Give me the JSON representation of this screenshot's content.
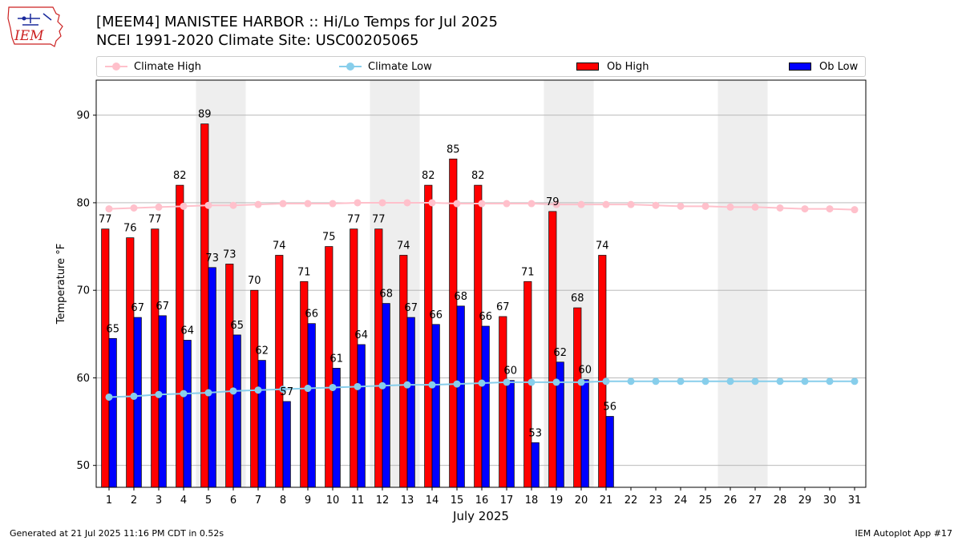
{
  "logo_text": "IEM",
  "title_line1": "[MEEM4] MANISTEE HARBOR :: Hi/Lo Temps for Jul 2025",
  "title_line2": "NCEI 1991-2020 Climate Site: USC00205065",
  "footer_left": "Generated at 21 Jul 2025 11:16 PM CDT in 0.52s",
  "footer_right": "IEM Autoplot App #17",
  "legend": {
    "climate_high": "Climate High",
    "climate_low": "Climate Low",
    "ob_high": "Ob High",
    "ob_low": "Ob Low"
  },
  "colors": {
    "ob_high": "#ff0000",
    "ob_low": "#0000ff",
    "climate_high": "#ffc0cb",
    "climate_low": "#87ceeb",
    "weekend_shade": "#eeeeee",
    "grid": "#b0b0b0"
  },
  "chart_data": {
    "type": "bar",
    "xlabel": "July 2025",
    "ylabel": "Temperature °F",
    "ylim": [
      47.5,
      94
    ],
    "yticks": [
      50,
      60,
      70,
      80,
      90
    ],
    "grid": "horizontal",
    "legend_position": "top",
    "days": [
      1,
      2,
      3,
      4,
      5,
      6,
      7,
      8,
      9,
      10,
      11,
      12,
      13,
      14,
      15,
      16,
      17,
      18,
      19,
      20,
      21,
      22,
      23,
      24,
      25,
      26,
      27,
      28,
      29,
      30,
      31
    ],
    "shaded_days": [
      5,
      6,
      12,
      13,
      19,
      20,
      26,
      27
    ],
    "series": [
      {
        "name": "Ob High",
        "kind": "bar",
        "values": [
          77,
          76,
          77,
          82,
          89,
          73,
          70,
          74,
          71,
          75,
          77,
          77,
          74,
          82,
          85,
          82,
          67,
          71,
          79,
          68,
          74
        ],
        "labels": [
          "77",
          "76",
          "77",
          "82",
          "89",
          "73",
          "70",
          "74",
          "71",
          "75",
          "77",
          "77",
          "74",
          "82",
          "85",
          "82",
          "67",
          "71",
          "79",
          "68",
          "74"
        ]
      },
      {
        "name": "Ob Low",
        "kind": "bar",
        "values": [
          64.5,
          66.9,
          67.1,
          64.3,
          72.6,
          64.9,
          62,
          57.3,
          66.2,
          61.1,
          63.8,
          68.5,
          66.9,
          66.1,
          68.2,
          65.9,
          59.7,
          52.6,
          61.8,
          59.8,
          55.6
        ],
        "labels": [
          "65",
          "67",
          "67",
          "64",
          "73",
          "65",
          "62",
          "57",
          "66",
          "61",
          "64",
          "68",
          "67",
          "66",
          "68",
          "66",
          "60",
          "53",
          "62",
          "60",
          "56"
        ]
      },
      {
        "name": "Climate High",
        "kind": "line",
        "values": [
          79.3,
          79.4,
          79.5,
          79.6,
          79.7,
          79.7,
          79.8,
          79.9,
          79.9,
          79.9,
          80.0,
          80.0,
          80.0,
          80.0,
          79.9,
          79.9,
          79.9,
          79.9,
          79.8,
          79.8,
          79.8,
          79.8,
          79.7,
          79.6,
          79.6,
          79.5,
          79.5,
          79.4,
          79.3,
          79.3,
          79.2
        ]
      },
      {
        "name": "Climate Low",
        "kind": "line",
        "values": [
          57.8,
          57.9,
          58.1,
          58.2,
          58.3,
          58.5,
          58.6,
          58.7,
          58.8,
          58.9,
          59.0,
          59.1,
          59.2,
          59.2,
          59.3,
          59.4,
          59.5,
          59.5,
          59.5,
          59.5,
          59.6,
          59.6,
          59.6,
          59.6,
          59.6,
          59.6,
          59.6,
          59.6,
          59.6,
          59.6,
          59.6
        ]
      }
    ]
  }
}
